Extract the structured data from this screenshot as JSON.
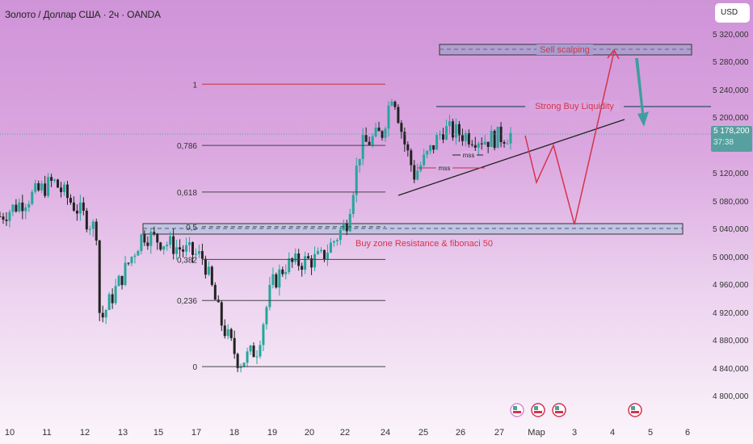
{
  "header": {
    "title": "Золото / Доллар США · 2ч · OANDA",
    "currency": "USD"
  },
  "price_axis": {
    "labels": [
      "5 320,000",
      "5 280,000",
      "5 240,000",
      "5 200,000",
      "5 120,000",
      "5 080,000",
      "5 040,000",
      "5 000,000",
      "4 960,000",
      "4 920,000",
      "4 880,000",
      "4 840,000",
      "4 800,000"
    ],
    "values": [
      5320,
      5280,
      5240,
      5200,
      5120,
      5080,
      5040,
      5000,
      4960,
      4920,
      4880,
      4840,
      4800
    ],
    "current_price": "5 178,200",
    "countdown": "37:38",
    "current_value": 5178.2
  },
  "time_axis": {
    "labels": [
      "10",
      "11",
      "12",
      "13",
      "15",
      "17",
      "18",
      "19",
      "20",
      "22",
      "24",
      "25",
      "26",
      "27",
      "Мар",
      "3",
      "4",
      "5",
      "6"
    ]
  },
  "colors": {
    "up": "#26a69a",
    "down": "#222222",
    "accent": "#57a0a0",
    "annotation": "#d6334d",
    "zone": "#b4c4e0"
  },
  "chart_data": {
    "type": "candlestick",
    "title": "Золото / Доллар США · 2ч · OANDA",
    "ylim": [
      4780,
      5340
    ],
    "price_path": [
      [
        10,
        5060
      ],
      [
        11.5,
        5110
      ],
      [
        12,
        5080
      ],
      [
        12.7,
        5040
      ],
      [
        12.8,
        4907
      ],
      [
        13,
        4930
      ],
      [
        14,
        5035
      ],
      [
        15.7,
        5000
      ],
      [
        16.2,
        4907
      ],
      [
        16.7,
        4849
      ],
      [
        17.2,
        4870
      ],
      [
        17.6,
        4960
      ],
      [
        18,
        4990
      ],
      [
        19,
        5000
      ],
      [
        19.7,
        5050
      ],
      [
        20.1,
        5160
      ],
      [
        20.7,
        5180
      ],
      [
        21,
        5243
      ],
      [
        21.3,
        5170
      ],
      [
        21.6,
        5120
      ],
      [
        22,
        5150
      ],
      [
        22.4,
        5185
      ],
      [
        22.8,
        5180
      ],
      [
        23.6,
        5170
      ],
      [
        24.3,
        5178
      ]
    ],
    "fibonacci": [
      {
        "label": "1",
        "value": 5250
      },
      {
        "label": "0,786",
        "value": 5162
      },
      {
        "label": "0,618",
        "value": 5095
      },
      {
        "label": "0,5",
        "value": 5045
      },
      {
        "label": "0,382",
        "value": 4998
      },
      {
        "label": "0,236",
        "value": 4939
      },
      {
        "label": "0",
        "value": 4844
      }
    ],
    "annotations": {
      "sell_zone": "Sell scalping",
      "liquidity": "Strong Buy Liquidity",
      "buy_zone": "Buy zone Resistance & fibonaci 50",
      "mss": [
        "mss",
        "mss"
      ]
    }
  }
}
